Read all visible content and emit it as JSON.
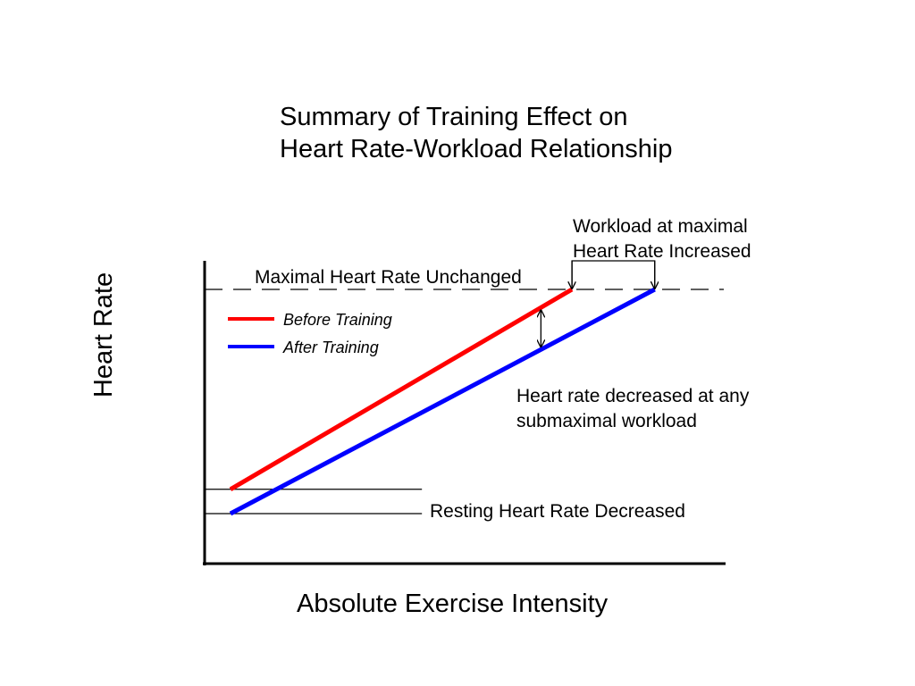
{
  "chart_data": {
    "type": "line",
    "title": [
      "Summary of Training Effect on",
      "Heart Rate-Workload Relationship"
    ],
    "xlabel": "Absolute Exercise Intensity",
    "ylabel": "Heart Rate",
    "xlim": [
      0,
      100
    ],
    "ylim": [
      0,
      100
    ],
    "grid": false,
    "legend_position": "top-left",
    "series": [
      {
        "name": "Before Training",
        "color": "#ff0000",
        "x": [
          5,
          71
        ],
        "y": [
          26,
          100
        ]
      },
      {
        "name": "After Training",
        "color": "#0000ff",
        "x": [
          5,
          87
        ],
        "y": [
          17,
          100
        ]
      }
    ],
    "reference_lines": {
      "maximal": {
        "y": 100,
        "style": "dashed"
      },
      "resting_before": {
        "y": 26,
        "x": [
          0,
          42
        ]
      },
      "resting_after": {
        "y": 17,
        "x": [
          0,
          42
        ]
      }
    },
    "annotations": {
      "maximal": "Maximal Heart Rate Unchanged",
      "workload": [
        "Workload at maximal",
        "Heart Rate Increased"
      ],
      "submaximal": [
        "Heart rate decreased at any",
        "submaximal workload"
      ],
      "resting": "Resting Heart Rate Decreased"
    }
  }
}
